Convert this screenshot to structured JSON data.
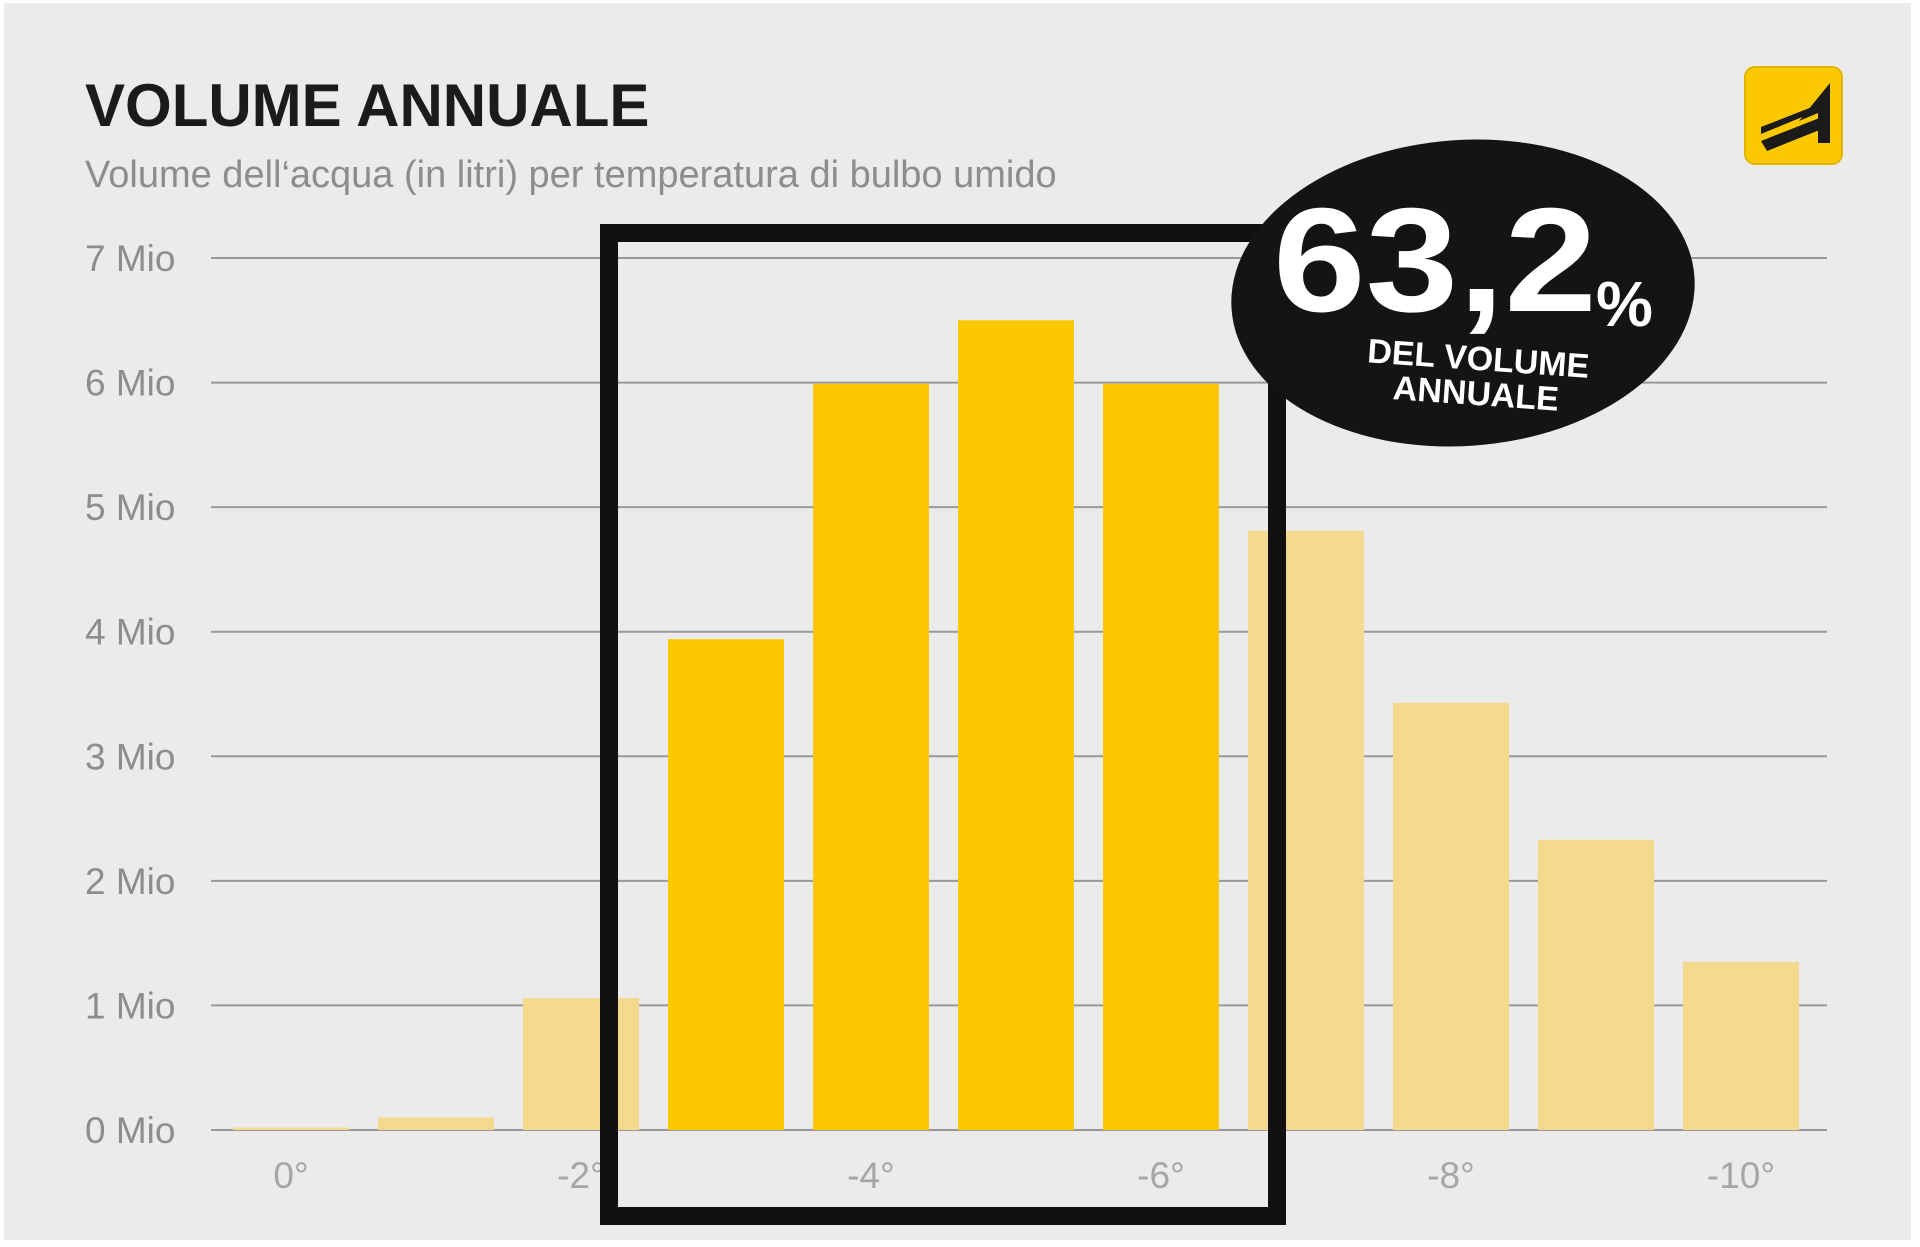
{
  "chart_data": {
    "type": "bar",
    "title": "VOLUME ANNUALE",
    "subtitle": "Volume dell‘acqua (in litri) per temperatura di bulbo umido",
    "y_ticks": [
      "0 Mio",
      "1 Mio",
      "2 Mio",
      "3 Mio",
      "4 Mio",
      "5 Mio",
      "6 Mio",
      "7 Mio"
    ],
    "x_ticks": [
      "0°",
      "-2°",
      "-4°",
      "-6°",
      "-8°",
      "-10°"
    ],
    "ylim": [
      0,
      7
    ],
    "unit": "Mio",
    "values": [
      0.02,
      0.1,
      1.06,
      3.94,
      5.99,
      6.5,
      5.99,
      4.81,
      3.43,
      2.33,
      1.35
    ],
    "highlighted": [
      false,
      false,
      false,
      true,
      true,
      true,
      true,
      false,
      false,
      false,
      false
    ],
    "colors": {
      "highlight": "#fcc800",
      "faded": "#f4d98f",
      "grid": "#999999",
      "frame": "#111111"
    },
    "grid": true,
    "legend": "none"
  },
  "annotation": {
    "value": "63,2",
    "percent_sign": "%",
    "line1": "DEL VOLUME",
    "line2": "ANNUALE",
    "bg_color": "#141414"
  },
  "logo": {
    "icon": "highway-logo-icon",
    "color": "#fcc800"
  }
}
